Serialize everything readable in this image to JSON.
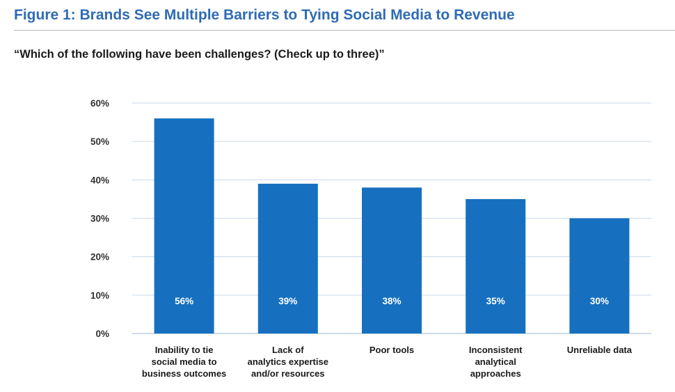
{
  "header": {
    "title": "Figure 1: Brands See Multiple Barriers to Tying Social Media to Revenue",
    "question": "“Which of the following have been challenges? (Check up to three)”"
  },
  "colors": {
    "bar": "#1670bf",
    "title": "#2f6bb3",
    "grid": "#c9d9ea"
  },
  "chart_data": {
    "type": "bar",
    "title": "Figure 1: Brands See Multiple Barriers to Tying Social Media to Revenue",
    "subtitle": "“Which of the following have been challenges? (Check up to three)”",
    "xlabel": "",
    "ylabel": "",
    "ylim": [
      0,
      60
    ],
    "yticks": [
      0,
      10,
      20,
      30,
      40,
      50,
      60
    ],
    "ytick_labels": [
      "0%",
      "10%",
      "20%",
      "30%",
      "40%",
      "50%",
      "60%"
    ],
    "grid": true,
    "categories": [
      [
        "Inability to tie",
        "social media to",
        "business outcomes"
      ],
      [
        "Lack of",
        "analytics expertise",
        "and/or resources"
      ],
      [
        "Poor tools"
      ],
      [
        "Inconsistent",
        "analytical",
        "approaches"
      ],
      [
        "Unreliable data"
      ]
    ],
    "values": [
      56,
      39,
      38,
      35,
      30
    ],
    "data_labels": [
      "56%",
      "39%",
      "38%",
      "35%",
      "30%"
    ]
  }
}
